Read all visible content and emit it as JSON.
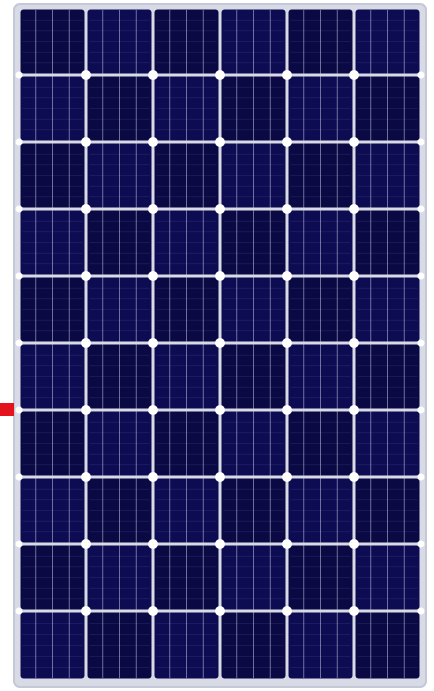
{
  "image": {
    "subject": "solar-panel",
    "cells_rows": 10,
    "cells_cols": 6,
    "colors": {
      "background": "#ffffff",
      "frame": "#d8dbe6",
      "cell": "#0d0c52",
      "cell_dark": "#0a0944",
      "busbar": "#d7d8f0",
      "finger": "#6f71b7",
      "node": "#ffffff",
      "marker": "#e3131d"
    }
  }
}
